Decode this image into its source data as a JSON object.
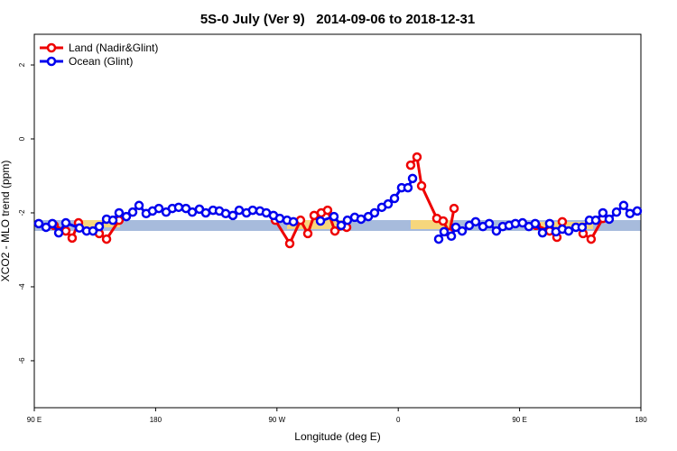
{
  "chart_data": {
    "type": "line",
    "title": "5S-0 July (Ver 9)   2014-09-06 to 2018-12-31",
    "xlabel": "Longitude (deg E)",
    "ylabel": "XCO2 - MLO trend (ppm)",
    "xlim": [
      90,
      540
    ],
    "xticks": [
      {
        "value": 90,
        "label": "90 E"
      },
      {
        "value": 180,
        "label": "180"
      },
      {
        "value": 270,
        "label": "90 W"
      },
      {
        "value": 360,
        "label": "0"
      },
      {
        "value": 450,
        "label": "90 E"
      },
      {
        "value": 540,
        "label": "180"
      }
    ],
    "ylim": [
      -7.27,
      2.83
    ],
    "yticks": [
      2,
      0,
      -2,
      -4,
      -6
    ],
    "legend": "top-left",
    "series": [
      {
        "name": "Land (Nadir&Glint)",
        "color": "#ee0000",
        "x": [
          104.7,
          113.4,
          118.1,
          122.8,
          null,
          138.2,
          143.6,
          152.9,
          null,
          268.8,
          279.5,
          287.5,
          292.9,
          297.6,
          302.9,
          307.6,
          313.0,
          321.7,
          null,
          369.2,
          373.9,
          377.3,
          388.6,
          393.3,
          398.0,
          401.4,
          null,
          462.3,
          472.3,
          477.7,
          481.7,
          null,
          497.1,
          503.1,
          511.8
        ],
        "values": [
          -2.34,
          -2.49,
          -2.68,
          -2.27,
          null,
          -2.56,
          -2.71,
          -2.2,
          null,
          -2.2,
          -2.83,
          -2.2,
          -2.56,
          -2.07,
          -2.0,
          -1.93,
          -2.49,
          -2.39,
          null,
          -0.71,
          -0.49,
          -1.27,
          -2.15,
          -2.22,
          -2.54,
          -1.88,
          null,
          -2.34,
          -2.49,
          -2.66,
          -2.24,
          null,
          -2.56,
          -2.71,
          -2.15
        ]
      },
      {
        "name": "Ocean (Glint)",
        "color": "#0000ee",
        "x": [
          93.3,
          98.7,
          103.4,
          108.1,
          113.4,
          123.5,
          128.8,
          133.5,
          138.2,
          143.6,
          148.3,
          152.9,
          158.3,
          163.0,
          167.7,
          173.0,
          177.7,
          182.4,
          187.8,
          192.4,
          197.1,
          202.5,
          207.2,
          212.5,
          217.2,
          222.6,
          227.3,
          232.0,
          237.3,
          242.0,
          247.4,
          252.0,
          257.4,
          262.1,
          267.4,
          272.1,
          277.5,
          282.2,
          null,
          302.3,
          312.3,
          317.7,
          322.3,
          327.7,
          332.4,
          337.8,
          342.4,
          347.8,
          352.5,
          357.2,
          362.5,
          367.2,
          370.6,
          null,
          390.0,
          394.0,
          399.4,
          402.7,
          407.4,
          412.7,
          417.4,
          422.8,
          427.5,
          432.8,
          437.5,
          442.2,
          446.9,
          452.2,
          456.9,
          461.6,
          467.0,
          472.3,
          477.0,
          481.7,
          486.4,
          491.8,
          496.4,
          501.8,
          506.5,
          511.8,
          516.5,
          521.9,
          527.2,
          531.9,
          537.3
        ],
        "values": [
          -2.29,
          -2.39,
          -2.29,
          -2.54,
          -2.27,
          -2.41,
          -2.49,
          -2.49,
          -2.37,
          -2.17,
          -2.2,
          -2.0,
          -2.1,
          -1.98,
          -1.8,
          -2.02,
          -1.95,
          -1.88,
          -1.98,
          -1.88,
          -1.85,
          -1.88,
          -1.98,
          -1.9,
          -2.0,
          -1.93,
          -1.95,
          -2.02,
          -2.07,
          -1.93,
          -2.0,
          -1.93,
          -1.95,
          -2.0,
          -2.07,
          -2.15,
          -2.2,
          -2.24,
          null,
          -2.22,
          -2.1,
          -2.34,
          -2.2,
          -2.12,
          -2.17,
          -2.1,
          -2.0,
          -1.85,
          -1.76,
          -1.61,
          -1.32,
          -1.32,
          -1.07,
          null,
          -2.71,
          -2.51,
          -2.63,
          -2.39,
          -2.49,
          -2.34,
          -2.24,
          -2.37,
          -2.29,
          -2.49,
          -2.37,
          -2.34,
          -2.29,
          -2.27,
          -2.37,
          -2.29,
          -2.54,
          -2.29,
          -2.51,
          -2.44,
          -2.49,
          -2.39,
          -2.39,
          -2.2,
          -2.2,
          -2.0,
          -2.17,
          -1.98,
          -1.8,
          -2.02,
          -1.95
        ]
      }
    ]
  }
}
